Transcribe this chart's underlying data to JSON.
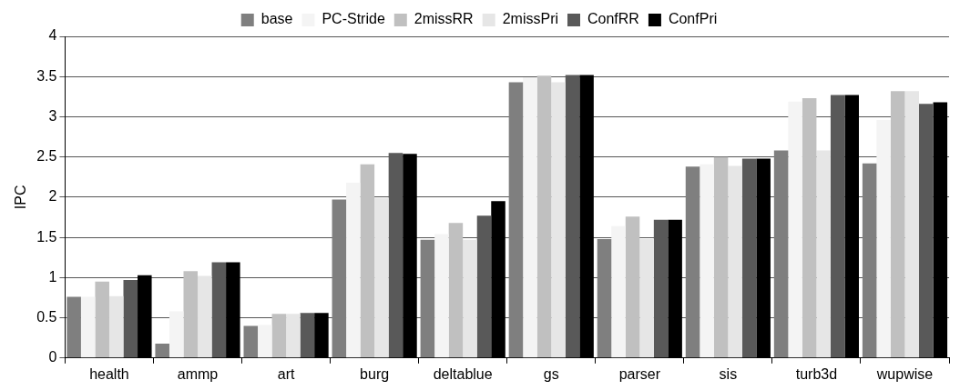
{
  "chart_data": {
    "type": "bar",
    "ylabel": "IPC",
    "categories": [
      "health",
      "ammp",
      "art",
      "burg",
      "deltablue",
      "gs",
      "parser",
      "sis",
      "turb3d",
      "wupwise"
    ],
    "series": [
      {
        "name": "base",
        "color": "#7f7f7f",
        "values": [
          0.76,
          0.18,
          0.4,
          1.97,
          1.47,
          3.43,
          1.48,
          2.38,
          2.58,
          2.42
        ]
      },
      {
        "name": "PC-Stride",
        "color": "#f4f4f4",
        "values": [
          0.76,
          0.58,
          0.41,
          2.18,
          1.54,
          3.49,
          1.64,
          2.41,
          3.19,
          2.96
        ]
      },
      {
        "name": "2missRR",
        "color": "#c0c0c0",
        "values": [
          0.95,
          1.08,
          0.55,
          2.41,
          1.68,
          3.51,
          1.76,
          2.5,
          3.23,
          3.32
        ]
      },
      {
        "name": "2missPri",
        "color": "#e6e6e6",
        "values": [
          0.77,
          1.02,
          0.55,
          1.99,
          1.47,
          3.43,
          1.48,
          2.39,
          2.58,
          3.32
        ]
      },
      {
        "name": "ConfRR",
        "color": "#595959",
        "values": [
          0.97,
          1.19,
          0.56,
          2.55,
          1.77,
          3.52,
          1.72,
          2.48,
          3.27,
          3.16
        ]
      },
      {
        "name": "ConfPri",
        "color": "#000000",
        "values": [
          1.03,
          1.19,
          0.56,
          2.54,
          1.95,
          3.52,
          1.72,
          2.48,
          3.27,
          3.18
        ]
      }
    ],
    "ylim": [
      0,
      4
    ],
    "yticks": [
      0,
      0.5,
      1,
      1.5,
      2,
      2.5,
      3,
      3.5,
      4
    ],
    "grid": "y",
    "legend": "top"
  }
}
